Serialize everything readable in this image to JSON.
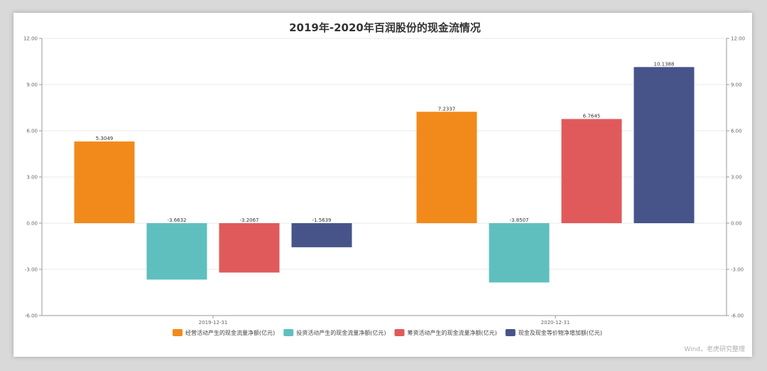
{
  "chart_data": {
    "type": "bar",
    "title": "2019年-2020年百润股份的现金流情况",
    "categories": [
      "2019-12-31",
      "2020-12-31"
    ],
    "series": [
      {
        "name": "经营活动产生的现金流量净额(亿元)",
        "color": "#f28a1b",
        "values": [
          5.3049,
          7.2337
        ],
        "labels": [
          "5.3049",
          "7.2337"
        ]
      },
      {
        "name": "投资活动产生的现金流量净额(亿元)",
        "color": "#5fbfbf",
        "values": [
          -3.6632,
          -3.8507
        ],
        "labels": [
          "-3.6632",
          "-3.8507"
        ]
      },
      {
        "name": "筹资活动产生的现金流量净额(亿元)",
        "color": "#e05a5b",
        "values": [
          -3.2067,
          6.7645
        ],
        "labels": [
          "-3.2067",
          "6.7645"
        ]
      },
      {
        "name": "现金及现金等价物净增加额(亿元)",
        "color": "#46548a",
        "values": [
          -1.5639,
          10.1388
        ],
        "labels": [
          "-1.5639",
          "10.1388"
        ]
      }
    ],
    "ylim": [
      -6,
      12
    ],
    "yticks": [
      "12.00",
      "9.00",
      "6.00",
      "3.00",
      "0.00",
      "-3.00",
      "-6.00"
    ],
    "ytick_values": [
      12,
      9,
      6,
      3,
      0,
      -3,
      -6
    ],
    "grid": true,
    "legend_position": "bottom"
  },
  "watermark": "Wind，老虎研究整理"
}
